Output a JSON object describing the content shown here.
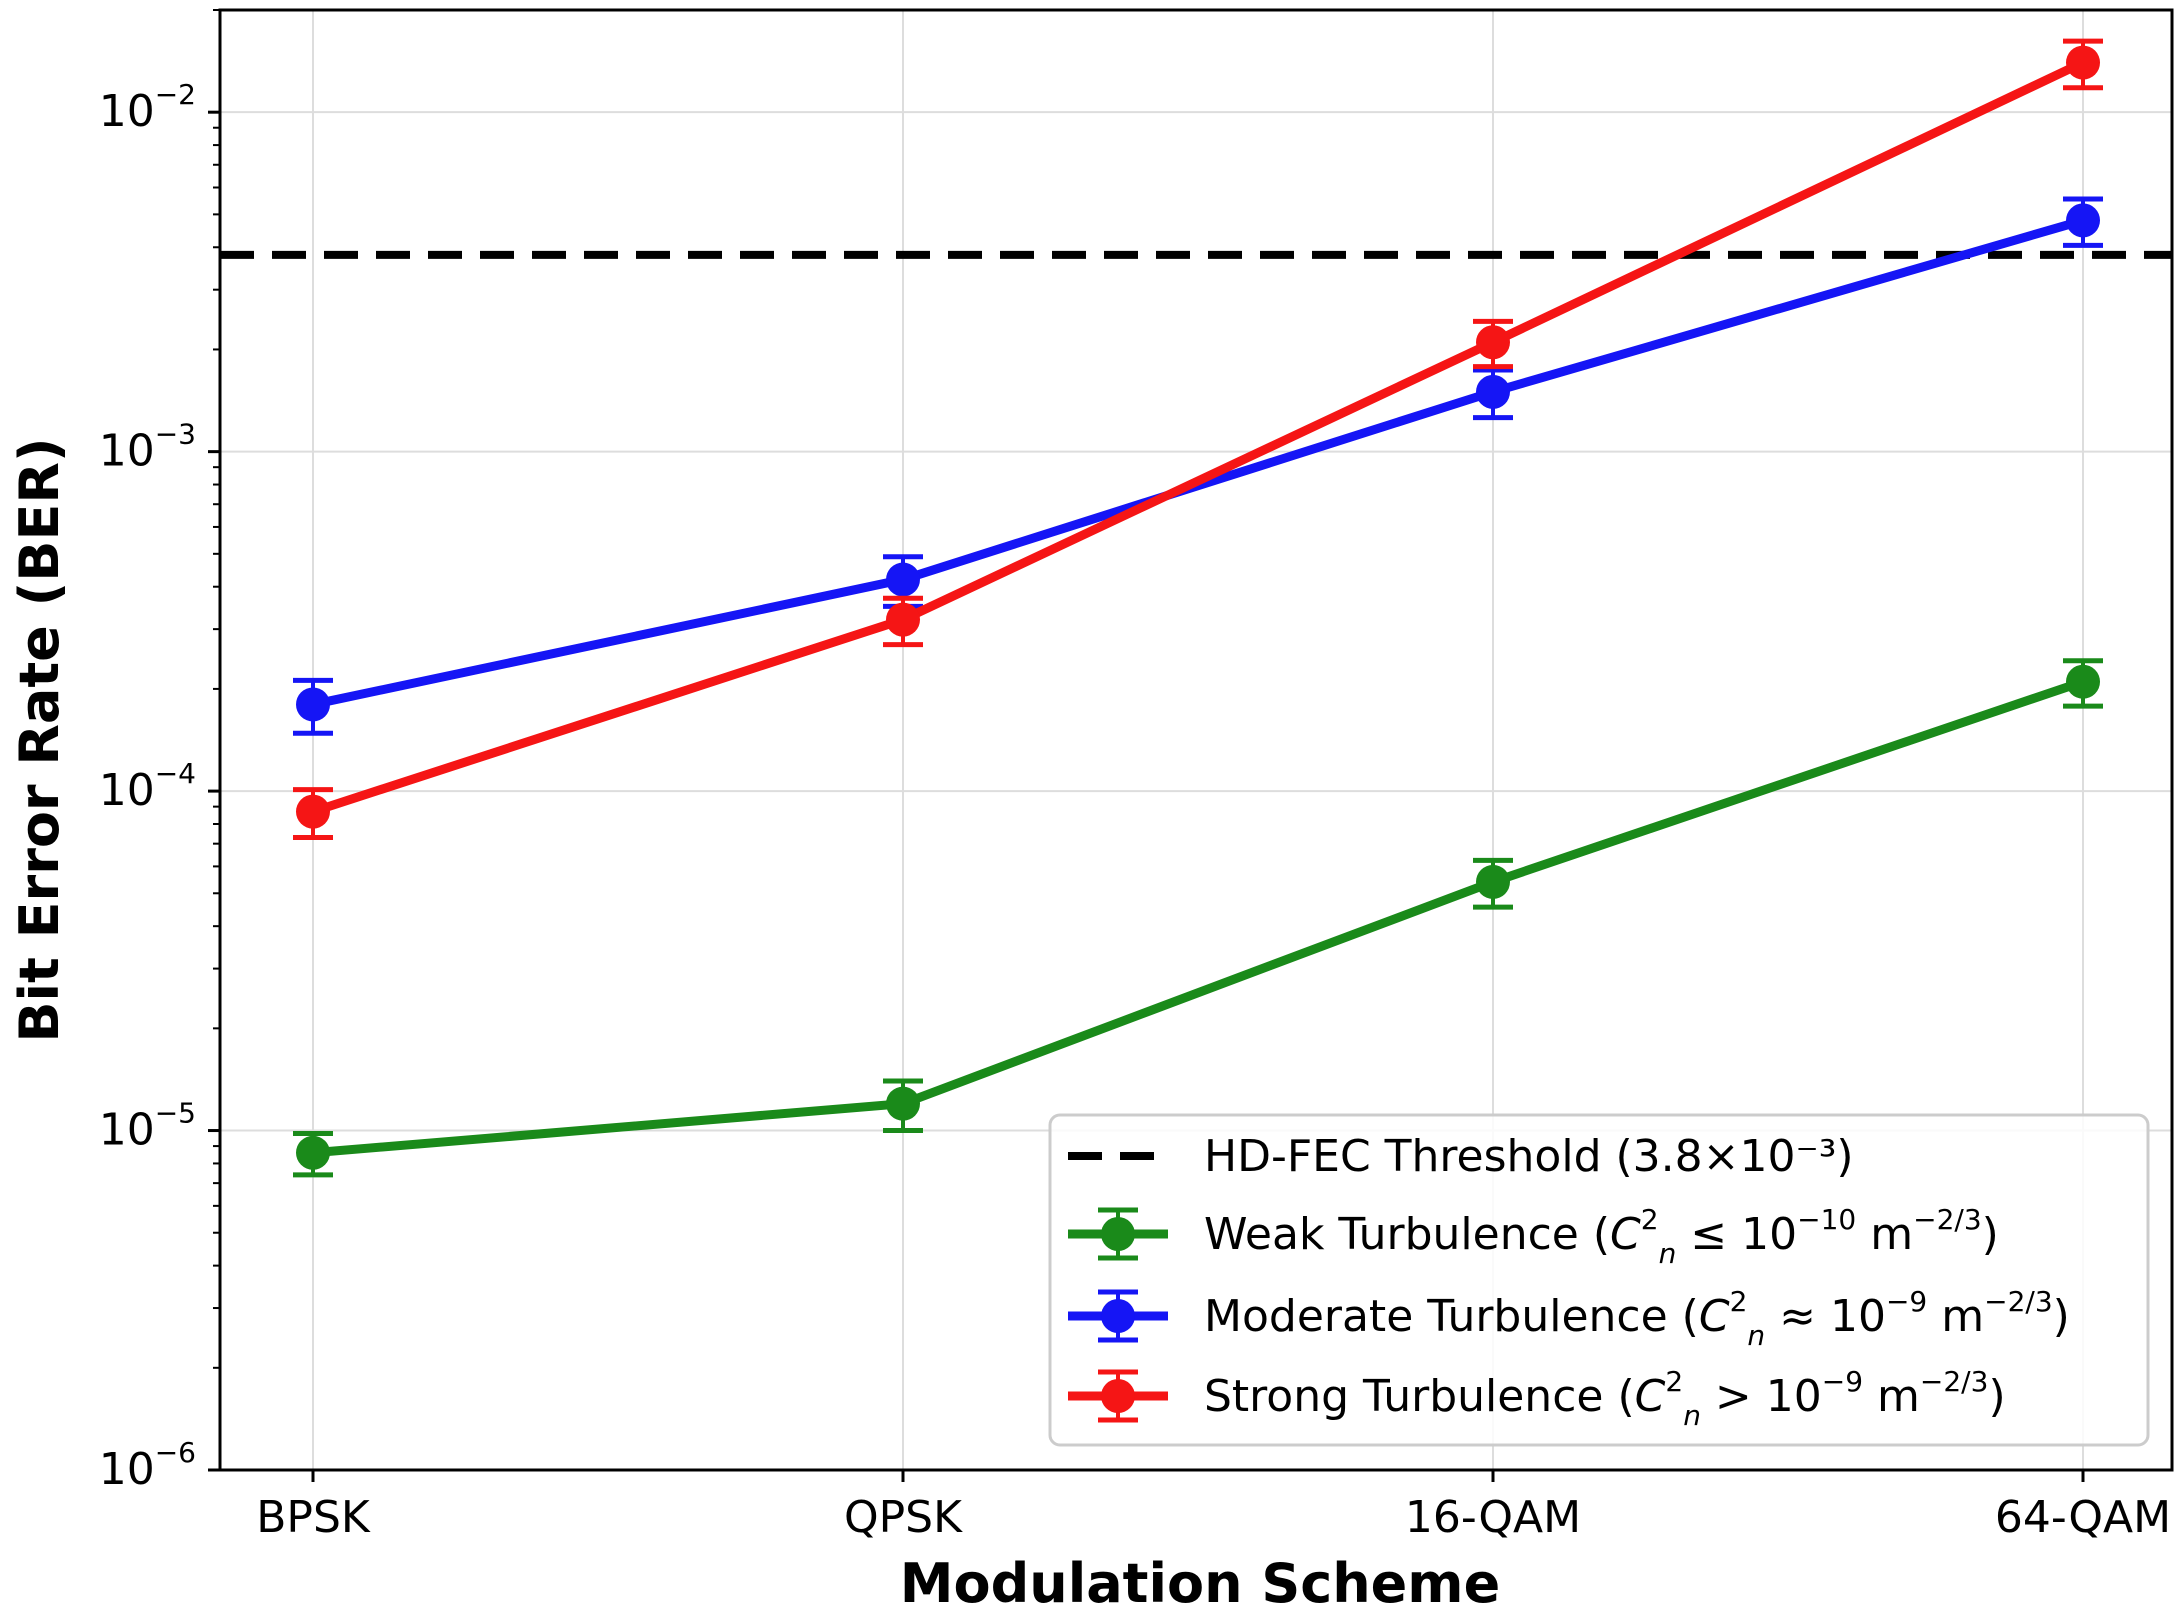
{
  "chart_data": {
    "type": "line",
    "title": "",
    "xlabel": "Modulation Scheme",
    "ylabel": "Bit Error Rate (BER)",
    "yscale": "log",
    "ylim": [
      1e-06,
      0.02
    ],
    "grid": true,
    "legend_position": "bottom-right",
    "categories": [
      "BPSK",
      "QPSK",
      "16-QAM",
      "64-QAM"
    ],
    "y_ticks": [
      {
        "value": 1e-06,
        "base": "10",
        "exp": "−6"
      },
      {
        "value": 1e-05,
        "base": "10",
        "exp": "−5"
      },
      {
        "value": 0.0001,
        "base": "10",
        "exp": "−4"
      },
      {
        "value": 0.001,
        "base": "10",
        "exp": "−3"
      },
      {
        "value": 0.01,
        "base": "10",
        "exp": "−2"
      }
    ],
    "threshold": {
      "name": "HD-FEC Threshold (3.8×10⁻³)",
      "value": 0.0038,
      "color": "#000000",
      "style": "dashed"
    },
    "series": [
      {
        "name": "Weak Turbulence",
        "legend": {
          "prefix": "Weak Turbulence (",
          "relation": " ≤ 10",
          "exp": "−10",
          "unit": " m",
          "unit_exp": "−2/3",
          "suffix": ")"
        },
        "color": "#1a8a1a",
        "values": [
          8.6e-06,
          1.2e-05,
          5.4e-05,
          0.00021
        ],
        "errors": [
          1.2e-06,
          2e-06,
          8.5e-06,
          3.2e-05
        ]
      },
      {
        "name": "Moderate Turbulence",
        "legend": {
          "prefix": "Moderate Turbulence (",
          "relation": " ≈ 10",
          "exp": "−9",
          "unit": " m",
          "unit_exp": "−2/3",
          "suffix": ")"
        },
        "color": "#1515f5",
        "values": [
          0.00018,
          0.00042,
          0.0015,
          0.0048
        ],
        "errors": [
          3.2e-05,
          7e-05,
          0.00024,
          0.00075
        ]
      },
      {
        "name": "Strong Turbulence",
        "legend": {
          "prefix": "Strong Turbulence (",
          "relation": " > 10",
          "exp": "−9",
          "unit": " m",
          "unit_exp": "−2/3",
          "suffix": ")"
        },
        "color": "#f51515",
        "values": [
          8.7e-05,
          0.00032,
          0.0021,
          0.014
        ],
        "errors": [
          1.4e-05,
          5e-05,
          0.00032,
          0.0022
        ]
      }
    ],
    "legend_symbol": {
      "C": "C",
      "n": "n",
      "sq": "2"
    }
  }
}
